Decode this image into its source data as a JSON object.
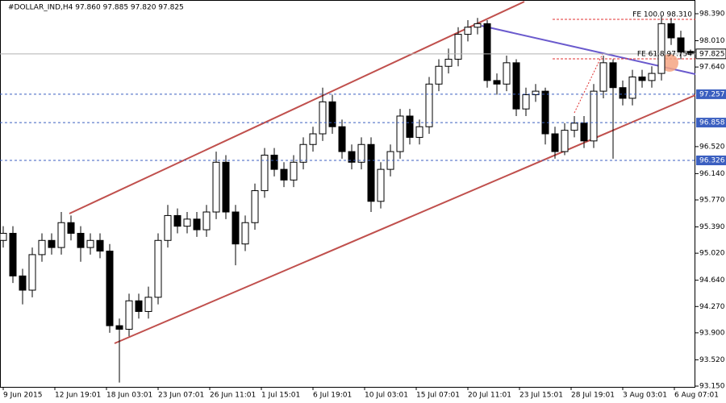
{
  "chart_data": {
    "type": "candlestick",
    "title": "#DOLLAR_IND,H4  97.860 97.885 97.820 97.825",
    "x": [
      0,
      3,
      6,
      9,
      12,
      15,
      18,
      21,
      24,
      27,
      30,
      33,
      36,
      39,
      42,
      45,
      48,
      51,
      54,
      57,
      60,
      63,
      66,
      69,
      72,
      75,
      78,
      81,
      84,
      87,
      90,
      93,
      96,
      99,
      102,
      105,
      108,
      111,
      114,
      117,
      120,
      123,
      126,
      129,
      132,
      135,
      138,
      141,
      144,
      147,
      150,
      153,
      156,
      159,
      162,
      165,
      168,
      171,
      174,
      177,
      180,
      183,
      186,
      189,
      192,
      195,
      198,
      201,
      204,
      207,
      210,
      213
    ],
    "open": [
      95.2,
      95.3,
      94.7,
      94.5,
      95.0,
      95.2,
      95.1,
      95.45,
      95.3,
      95.1,
      95.2,
      95.05,
      94.0,
      93.95,
      94.35,
      94.2,
      94.4,
      95.2,
      95.55,
      95.4,
      95.5,
      95.35,
      95.6,
      96.3,
      95.6,
      95.15,
      95.45,
      95.9,
      96.4,
      96.2,
      96.05,
      96.3,
      96.55,
      96.7,
      97.15,
      96.8,
      96.45,
      96.3,
      96.55,
      95.75,
      96.2,
      96.45,
      96.95,
      96.65,
      96.8,
      97.4,
      97.65,
      97.75,
      98.1,
      98.2,
      98.25,
      97.45,
      97.4,
      97.7,
      97.05,
      97.25,
      97.3,
      96.7,
      96.45,
      96.75,
      96.85,
      96.6,
      97.3,
      97.7,
      97.35,
      97.2,
      97.5,
      97.45,
      97.55,
      98.25,
      98.05,
      97.86
    ],
    "high": [
      95.4,
      95.4,
      94.8,
      95.1,
      95.3,
      95.3,
      95.6,
      95.55,
      95.4,
      95.3,
      95.3,
      95.15,
      94.1,
      94.45,
      94.45,
      94.55,
      95.3,
      95.7,
      95.65,
      95.6,
      95.6,
      95.7,
      96.45,
      96.4,
      95.7,
      95.55,
      96.0,
      96.5,
      96.5,
      96.3,
      96.4,
      96.65,
      96.8,
      97.35,
      97.25,
      96.9,
      96.55,
      96.65,
      96.65,
      96.3,
      96.55,
      97.05,
      97.05,
      96.9,
      97.5,
      97.75,
      97.9,
      98.2,
      98.3,
      98.33,
      98.3,
      97.55,
      97.8,
      97.75,
      97.35,
      97.4,
      97.35,
      96.8,
      96.85,
      96.95,
      96.95,
      97.4,
      97.8,
      97.75,
      97.45,
      97.6,
      97.6,
      97.65,
      98.35,
      98.33,
      98.15,
      97.885
    ],
    "low": [
      95.1,
      94.6,
      94.3,
      94.4,
      94.9,
      95.0,
      95.0,
      95.2,
      94.9,
      95.0,
      94.95,
      93.9,
      93.2,
      93.85,
      94.1,
      94.1,
      94.3,
      95.1,
      95.3,
      95.3,
      95.25,
      95.25,
      95.5,
      95.5,
      94.85,
      95.05,
      95.35,
      95.8,
      96.1,
      95.95,
      95.95,
      96.2,
      96.45,
      96.6,
      96.7,
      96.35,
      96.2,
      96.2,
      95.6,
      95.65,
      96.1,
      96.35,
      96.55,
      96.55,
      96.7,
      97.3,
      97.55,
      97.65,
      98.0,
      98.1,
      97.35,
      97.25,
      97.3,
      96.95,
      96.95,
      97.15,
      96.55,
      96.35,
      96.4,
      96.65,
      96.5,
      96.5,
      97.2,
      96.35,
      97.1,
      97.1,
      97.35,
      97.35,
      97.45,
      97.95,
      97.75,
      97.82
    ],
    "close": [
      95.3,
      94.7,
      94.5,
      95.0,
      95.2,
      95.1,
      95.45,
      95.3,
      95.1,
      95.2,
      95.05,
      94.0,
      93.95,
      94.35,
      94.2,
      94.4,
      95.2,
      95.55,
      95.4,
      95.5,
      95.35,
      95.6,
      96.3,
      95.6,
      95.15,
      95.45,
      95.9,
      96.4,
      96.2,
      96.05,
      96.3,
      96.55,
      96.7,
      97.15,
      96.8,
      96.45,
      96.3,
      96.55,
      95.75,
      96.2,
      96.45,
      96.95,
      96.65,
      96.8,
      97.4,
      97.65,
      97.75,
      98.1,
      98.2,
      98.25,
      97.45,
      97.4,
      97.7,
      97.05,
      97.25,
      97.3,
      96.7,
      96.45,
      96.75,
      96.85,
      96.6,
      97.3,
      97.7,
      97.35,
      97.2,
      97.5,
      97.45,
      97.55,
      98.25,
      98.05,
      97.85,
      97.825
    ],
    "xlim": [
      -1,
      214.5
    ],
    "xticks": [
      {
        "value": 0,
        "label": "9 Jun 2015"
      },
      {
        "value": 16,
        "label": "12 Jun 19:01"
      },
      {
        "value": 32,
        "label": "18 Jun 03:01"
      },
      {
        "value": 48,
        "label": "23 Jun 07:01"
      },
      {
        "value": 64,
        "label": "26 Jun 11:01"
      },
      {
        "value": 80,
        "label": "1 Jul 15:01"
      },
      {
        "value": 96,
        "label": "6 Jul 19:01"
      },
      {
        "value": 112,
        "label": "10 Jul 03:01"
      },
      {
        "value": 128,
        "label": "15 Jul 07:01"
      },
      {
        "value": 144,
        "label": "20 Jul 11:01"
      },
      {
        "value": 160,
        "label": "23 Jul 15:01"
      },
      {
        "value": 176,
        "label": "28 Jul 19:01"
      },
      {
        "value": 192,
        "label": "3 Aug 03:01"
      },
      {
        "value": 208,
        "label": "6 Aug 07:01"
      }
    ],
    "ylim": [
      93.139,
      98.583
    ],
    "yticks": [
      {
        "value": 98.39,
        "label": "98.390"
      },
      {
        "value": 98.01,
        "label": "98.010"
      },
      {
        "value": 97.64,
        "label": "97.640"
      },
      {
        "value": 96.52,
        "label": "96.520"
      },
      {
        "value": 96.14,
        "label": "96.140"
      },
      {
        "value": 95.77,
        "label": "95.770"
      },
      {
        "value": 95.39,
        "label": "95.390"
      },
      {
        "value": 95.02,
        "label": "95.020"
      },
      {
        "value": 94.64,
        "label": "94.640"
      },
      {
        "value": 94.27,
        "label": "94.270"
      },
      {
        "value": 93.9,
        "label": "93.900"
      },
      {
        "value": 93.52,
        "label": "93.520"
      },
      {
        "value": 93.15,
        "label": "93.150"
      }
    ],
    "levels": [
      97.257,
      96.858,
      96.326
    ],
    "level_color": "#3b5fc0",
    "price_line": 97.825,
    "annotations": [
      "FE 100.0 98.310",
      "FE 61.8 97.754"
    ],
    "annotation_color": "#e03030"
  }
}
